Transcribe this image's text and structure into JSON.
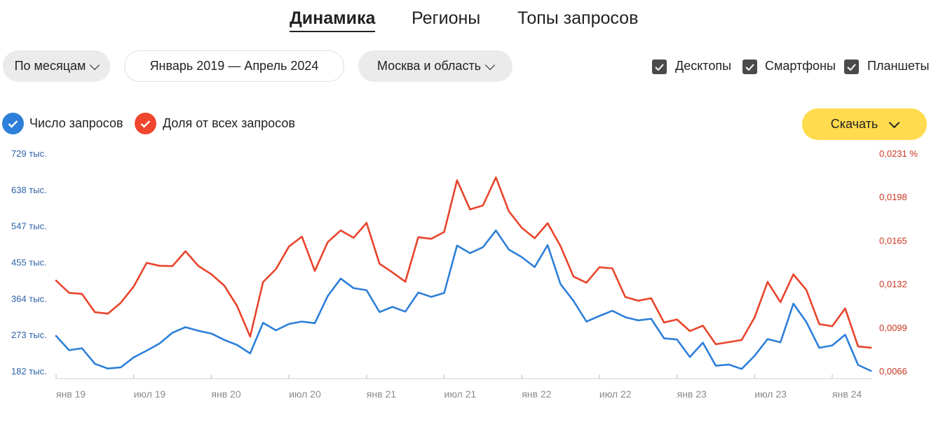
{
  "tabs": [
    {
      "label": "Динамика",
      "active": true
    },
    {
      "label": "Регионы",
      "active": false
    },
    {
      "label": "Топы запросов",
      "active": false
    }
  ],
  "filters": {
    "period": "По месяцам",
    "range": "Январь 2019 — Апрель 2024",
    "region": "Москва и область"
  },
  "devices": [
    {
      "label": "Десктопы",
      "checked": true
    },
    {
      "label": "Смартфоны",
      "checked": true
    },
    {
      "label": "Планшеты",
      "checked": true
    }
  ],
  "legend": [
    {
      "label": "Число запросов",
      "color": "#2d7fd9"
    },
    {
      "label": "Доля от всех запросов",
      "color": "#f0462d"
    }
  ],
  "download_label": "Скачать",
  "colors": {
    "blue": "#2d7fd9",
    "red": "#e8442b",
    "left_axis_text": "#2e62a8",
    "right_axis_text": "#c8361f"
  },
  "chart_data": {
    "type": "line",
    "x_ticks": [
      "янв 19",
      "июл 19",
      "янв 20",
      "июл 20",
      "янв 21",
      "июл 21",
      "янв 22",
      "июл 22",
      "янв 23",
      "июл 23",
      "янв 24"
    ],
    "y_left_ticks": [
      "729 тыс.",
      "638 тыс.",
      "547 тыс.",
      "455 тыс.",
      "364 тыс.",
      "273 тыс.",
      "182 тыс."
    ],
    "y_right_ticks": [
      "0,0231 %",
      "0,0198",
      "0,0165",
      "0,0132",
      "0,0099",
      "0,0066"
    ],
    "y_left_range": [
      182000,
      729000
    ],
    "y_right_range": [
      0.0066,
      0.0231
    ],
    "x": [
      "2019-01",
      "2019-02",
      "2019-03",
      "2019-04",
      "2019-05",
      "2019-06",
      "2019-07",
      "2019-08",
      "2019-09",
      "2019-10",
      "2019-11",
      "2019-12",
      "2020-01",
      "2020-02",
      "2020-03",
      "2020-04",
      "2020-05",
      "2020-06",
      "2020-07",
      "2020-08",
      "2020-09",
      "2020-10",
      "2020-11",
      "2020-12",
      "2021-01",
      "2021-02",
      "2021-03",
      "2021-04",
      "2021-05",
      "2021-06",
      "2021-07",
      "2021-08",
      "2021-09",
      "2021-10",
      "2021-11",
      "2021-12",
      "2022-01",
      "2022-02",
      "2022-03",
      "2022-04",
      "2022-05",
      "2022-06",
      "2022-07",
      "2022-08",
      "2022-09",
      "2022-10",
      "2022-11",
      "2022-12",
      "2023-01",
      "2023-02",
      "2023-03",
      "2023-04",
      "2023-05",
      "2023-06",
      "2023-07",
      "2023-08",
      "2023-09",
      "2023-10",
      "2023-11",
      "2023-12",
      "2024-01",
      "2024-02",
      "2024-03",
      "2024-04"
    ],
    "series": [
      {
        "name": "Число запросов",
        "axis": "left",
        "values": [
          270000,
          234000,
          239000,
          200000,
          188000,
          191000,
          216000,
          233000,
          251000,
          278000,
          292000,
          283000,
          276000,
          260000,
          247000,
          226000,
          303000,
          284000,
          300000,
          306000,
          302000,
          370000,
          414000,
          390000,
          385000,
          330000,
          343000,
          331000,
          379000,
          368000,
          378000,
          497000,
          478000,
          493000,
          535000,
          487000,
          468000,
          443000,
          498000,
          400000,
          358000,
          306000,
          320000,
          333000,
          317000,
          309000,
          313000,
          264000,
          261000,
          217000,
          253000,
          195000,
          198000,
          187000,
          220000,
          262000,
          254000,
          351000,
          305000,
          240000,
          246000,
          273000,
          197000,
          182000
        ]
      },
      {
        "name": "Доля от всех запросов",
        "axis": "right",
        "values": [
          0.01345,
          0.01252,
          0.01244,
          0.01105,
          0.01094,
          0.01177,
          0.013,
          0.01479,
          0.01457,
          0.01455,
          0.01567,
          0.01456,
          0.01393,
          0.01307,
          0.01151,
          0.0092,
          0.01334,
          0.01432,
          0.01603,
          0.01678,
          0.01418,
          0.01636,
          0.01725,
          0.01669,
          0.01782,
          0.01473,
          0.01407,
          0.01336,
          0.01674,
          0.01661,
          0.01713,
          0.02105,
          0.01884,
          0.01915,
          0.02127,
          0.0187,
          0.01745,
          0.01666,
          0.0178,
          0.01606,
          0.01375,
          0.01329,
          0.01446,
          0.01437,
          0.01221,
          0.01192,
          0.01211,
          0.01027,
          0.0105,
          0.00962,
          0.01003,
          0.00862,
          0.00878,
          0.00894,
          0.01066,
          0.01335,
          0.01181,
          0.01392,
          0.01274,
          0.01015,
          0.00999,
          0.01134,
          0.00845,
          0.00836
        ]
      }
    ]
  }
}
